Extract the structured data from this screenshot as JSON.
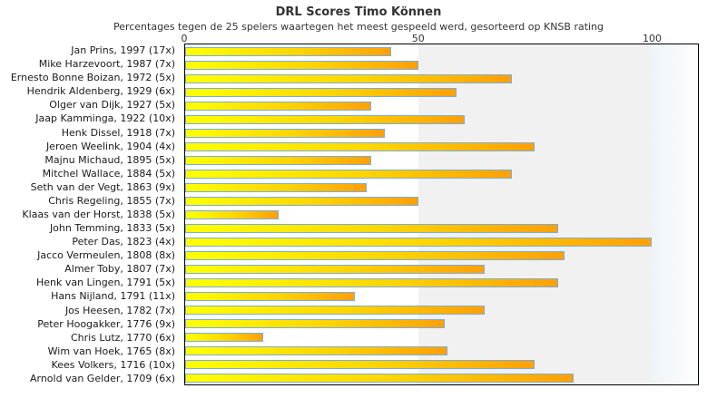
{
  "chart_data": {
    "type": "bar",
    "orientation": "horizontal",
    "title": "DRL Scores Timo Können",
    "subtitle": "Percentages tegen de 25 spelers waartegen het meest gespeeld werd, gesorteerd op KNSB rating",
    "categories": [
      "Jan Prins, 1997 (17x)",
      "Mike Harzevoort, 1987 (7x)",
      "Ernesto Bonne Boizan, 1972 (5x)",
      "Hendrik Aldenberg, 1929 (6x)",
      "Olger van Dijk, 1927 (5x)",
      "Jaap Kamminga, 1922 (10x)",
      "Henk Dissel, 1918 (7x)",
      "Jeroen Weelink, 1904 (4x)",
      "Majnu Michaud, 1895 (5x)",
      "Mitchel Wallace, 1884 (5x)",
      "Seth van der Vegt, 1863 (9x)",
      "Chris Regeling, 1855 (7x)",
      "Klaas van der Horst, 1838 (5x)",
      "John Temming, 1833 (5x)",
      "Peter Das, 1823 (4x)",
      "Jacco Vermeulen, 1808 (8x)",
      "Almer Toby, 1807 (7x)",
      "Henk van Lingen, 1791 (5x)",
      "Hans Nijland, 1791 (11x)",
      "Jos Heesen, 1782 (7x)",
      "Peter Hoogakker, 1776 (9x)",
      "Chris Lutz, 1770 (6x)",
      "Wim van Hoek, 1765 (8x)",
      "Kees Volkers, 1716 (10x)",
      "Arnold van Gelder, 1709 (6x)"
    ],
    "values": [
      44.1,
      50,
      70,
      58.3,
      40,
      60,
      42.9,
      75,
      40,
      70,
      38.9,
      50,
      20,
      80,
      100,
      81.3,
      64.3,
      80,
      36.4,
      64.3,
      55.6,
      16.7,
      56.3,
      75,
      83.3
    ],
    "xlabel": "",
    "ylabel": "",
    "x_ticks": [
      0,
      50,
      100
    ],
    "xlim": [
      0,
      110
    ],
    "grid": "vertical-bands",
    "legend": "none",
    "colors": {
      "bar_gradient_start": "#ffff00",
      "bar_gradient_end": "#ffa007",
      "bar_border": "#7aaeda",
      "band_light": "#ffffff",
      "band_gray": "#f1f1f1",
      "plot_border": "#000000",
      "text": "#333333"
    }
  }
}
